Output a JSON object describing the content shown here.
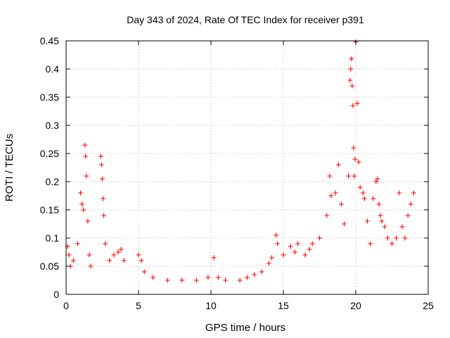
{
  "chart_data": {
    "type": "scatter",
    "title": "Day 343 of 2024, Rate Of TEC Index for receiver p391",
    "xlabel": "GPS time / hours",
    "ylabel": "ROTI / TECUs",
    "xlim": [
      0,
      25
    ],
    "ylim": [
      0,
      0.45
    ],
    "xticks": [
      0,
      5,
      10,
      15,
      20,
      25
    ],
    "yticks": [
      0,
      0.05,
      0.1,
      0.15,
      0.2,
      0.25,
      0.3,
      0.35,
      0.4,
      0.45
    ],
    "grid": true,
    "marker": "+",
    "color": "#ff0000",
    "series": [
      {
        "name": "ROTI",
        "x": [
          0.1,
          0.2,
          0.3,
          0.5,
          0.8,
          1.0,
          1.1,
          1.2,
          1.3,
          1.35,
          1.4,
          1.5,
          1.6,
          1.7,
          2.4,
          2.45,
          2.5,
          2.55,
          2.6,
          2.7,
          3.0,
          3.3,
          3.6,
          3.8,
          4.0,
          5.0,
          5.2,
          5.4,
          6.0,
          7.0,
          8.0,
          9.0,
          9.8,
          10.2,
          10.5,
          11.0,
          12.0,
          12.5,
          13.0,
          13.5,
          14.0,
          14.2,
          14.5,
          14.6,
          15.0,
          15.5,
          15.8,
          16.0,
          16.5,
          16.8,
          17.0,
          17.5,
          18.0,
          18.2,
          18.3,
          18.6,
          18.8,
          19.0,
          19.2,
          19.5,
          19.6,
          19.65,
          19.7,
          19.75,
          19.8,
          19.85,
          19.9,
          19.95,
          20.0,
          20.1,
          20.2,
          20.3,
          20.5,
          20.6,
          20.8,
          21.0,
          21.2,
          21.4,
          21.5,
          21.6,
          21.7,
          21.8,
          22.0,
          22.2,
          22.5,
          22.8,
          23.0,
          23.2,
          23.4,
          23.6,
          23.8,
          24.0
        ],
        "values": [
          0.085,
          0.07,
          0.05,
          0.06,
          0.09,
          0.18,
          0.16,
          0.15,
          0.265,
          0.245,
          0.21,
          0.13,
          0.07,
          0.05,
          0.245,
          0.23,
          0.205,
          0.17,
          0.14,
          0.09,
          0.06,
          0.07,
          0.075,
          0.08,
          0.06,
          0.07,
          0.06,
          0.04,
          0.03,
          0.025,
          0.025,
          0.025,
          0.03,
          0.065,
          0.03,
          0.025,
          0.025,
          0.03,
          0.035,
          0.04,
          0.055,
          0.065,
          0.105,
          0.09,
          0.07,
          0.085,
          0.075,
          0.09,
          0.07,
          0.08,
          0.09,
          0.1,
          0.14,
          0.21,
          0.175,
          0.18,
          0.23,
          0.16,
          0.125,
          0.21,
          0.38,
          0.4,
          0.418,
          0.37,
          0.335,
          0.26,
          0.21,
          0.24,
          0.448,
          0.339,
          0.235,
          0.19,
          0.18,
          0.17,
          0.13,
          0.09,
          0.17,
          0.2,
          0.205,
          0.16,
          0.14,
          0.13,
          0.12,
          0.1,
          0.09,
          0.1,
          0.18,
          0.12,
          0.1,
          0.14,
          0.16,
          0.18
        ]
      }
    ]
  }
}
